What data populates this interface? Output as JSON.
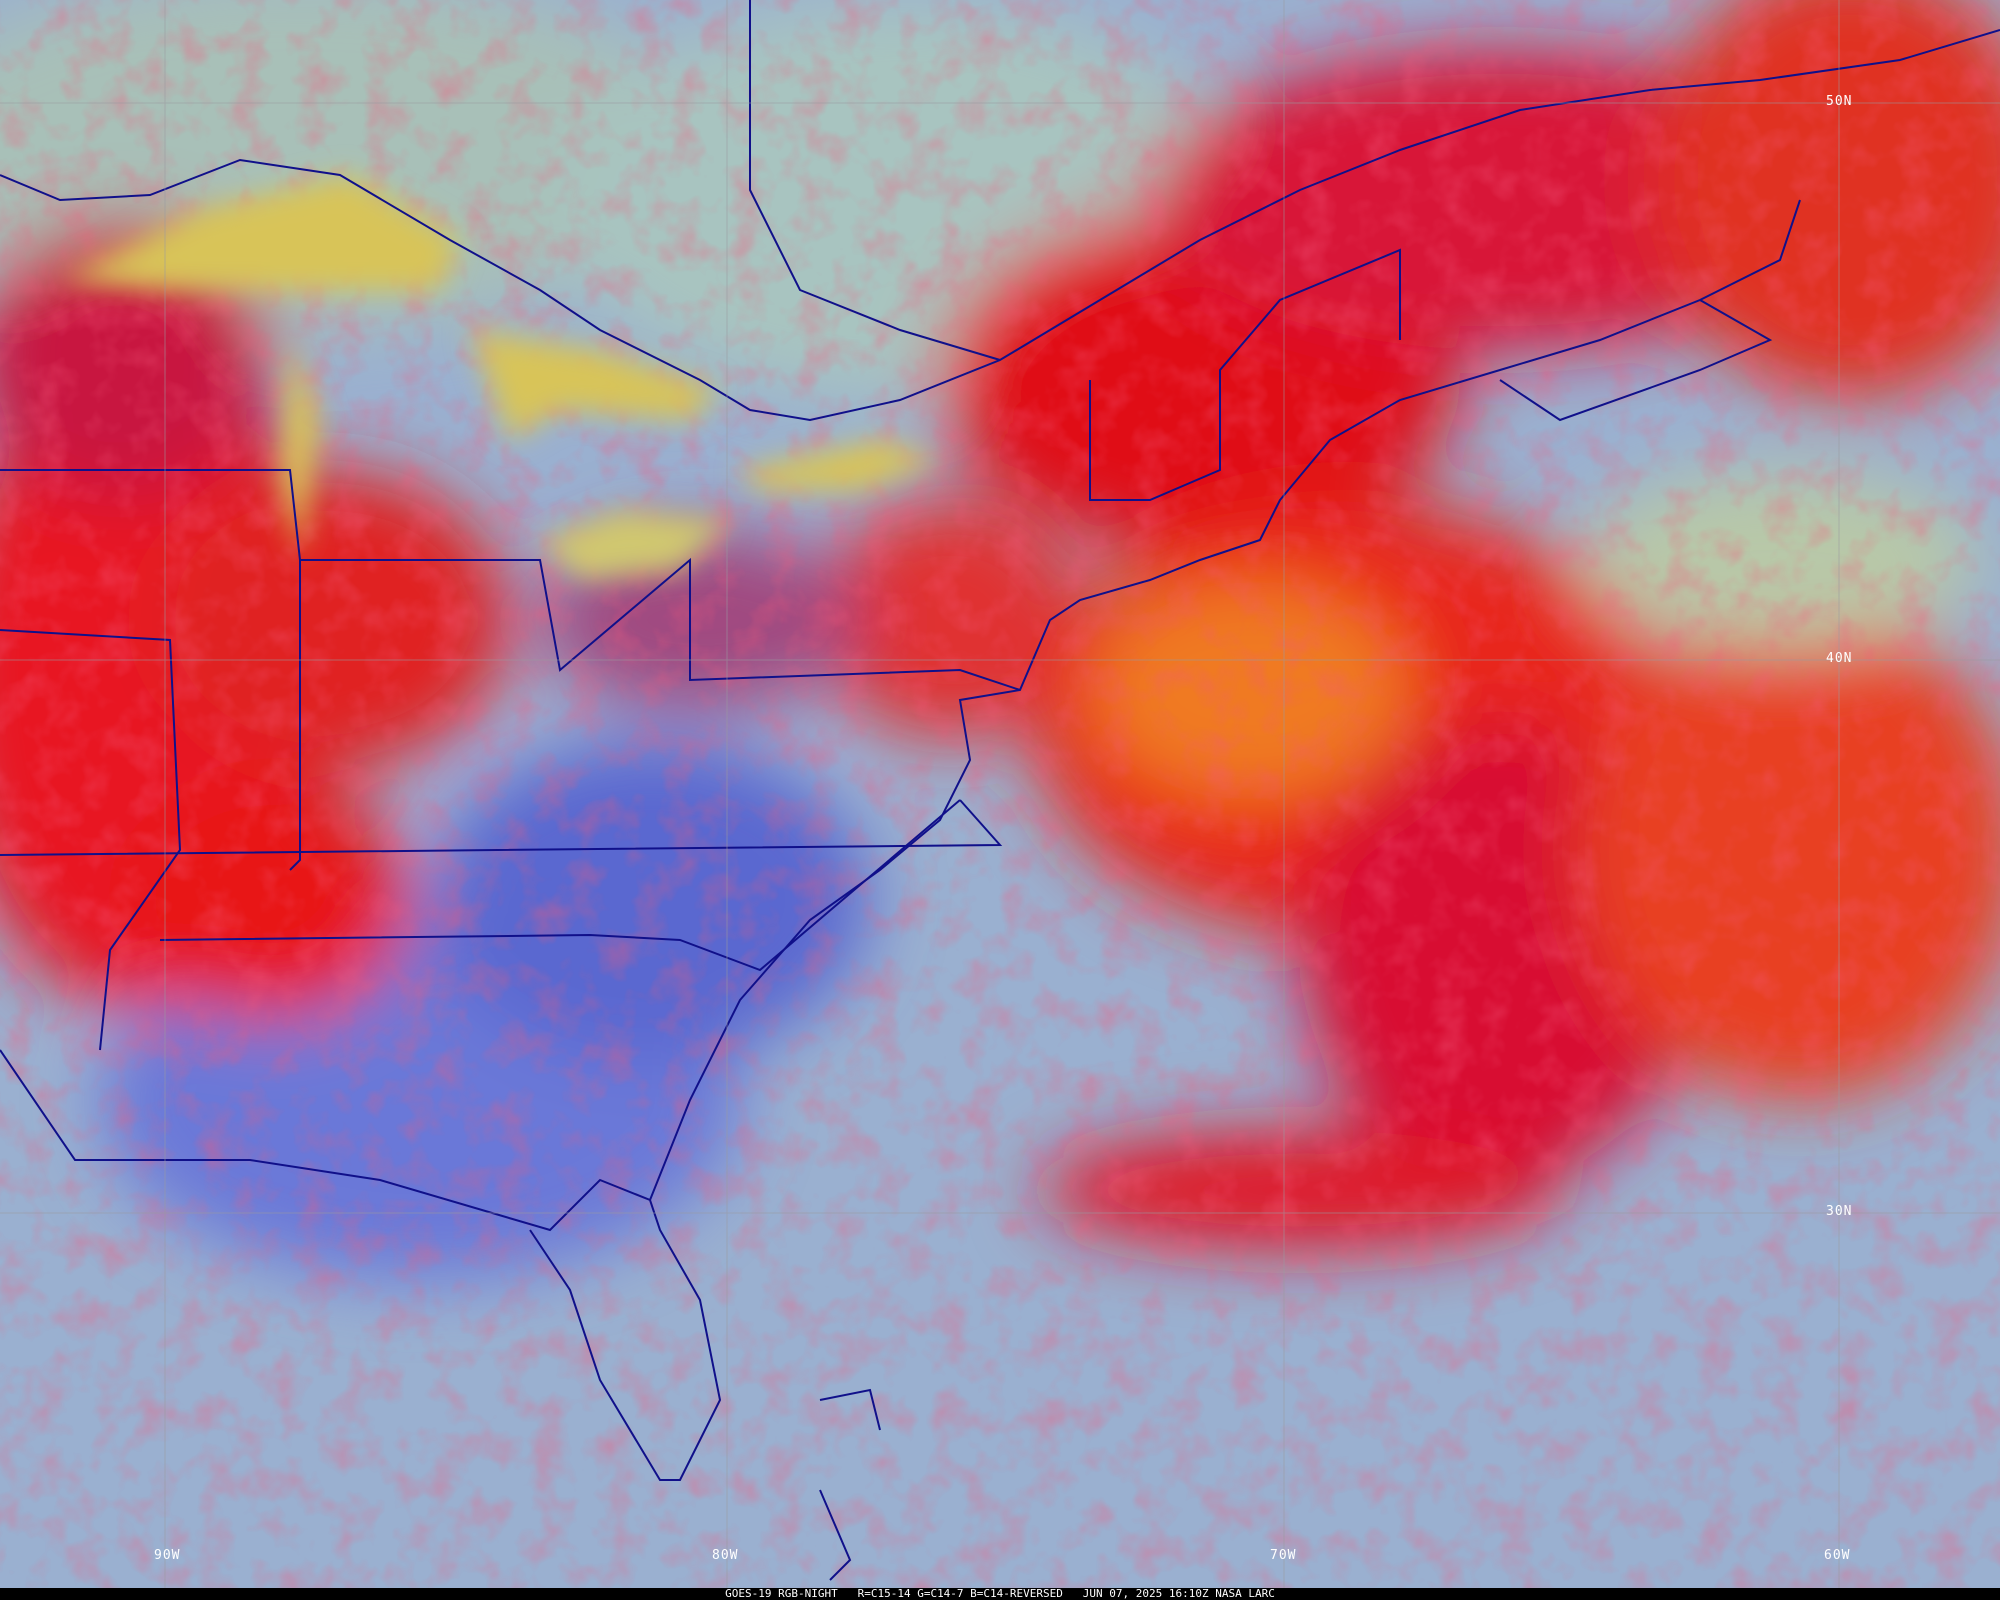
{
  "caption": {
    "satellite": "GOES-19",
    "product": "RGB-NIGHT",
    "channels": "R=C15-14 G=C14-7 B=C14-REVERSED",
    "datetime": "JUN 07, 2025 16:10Z",
    "credit": "NASA LARC"
  },
  "grid": {
    "latitude_labels": [
      "50N",
      "40N",
      "30N"
    ],
    "longitude_labels": [
      "90W",
      "80W",
      "70W",
      "60W"
    ]
  },
  "colors": {
    "clear_ocean": "#9ab0d0",
    "cloud_high": "#e0102a",
    "cloud_mid": "#f07a20",
    "lakes": "#d8c458",
    "land_clear": "#5a70d8",
    "boundaries": "#10108a"
  }
}
